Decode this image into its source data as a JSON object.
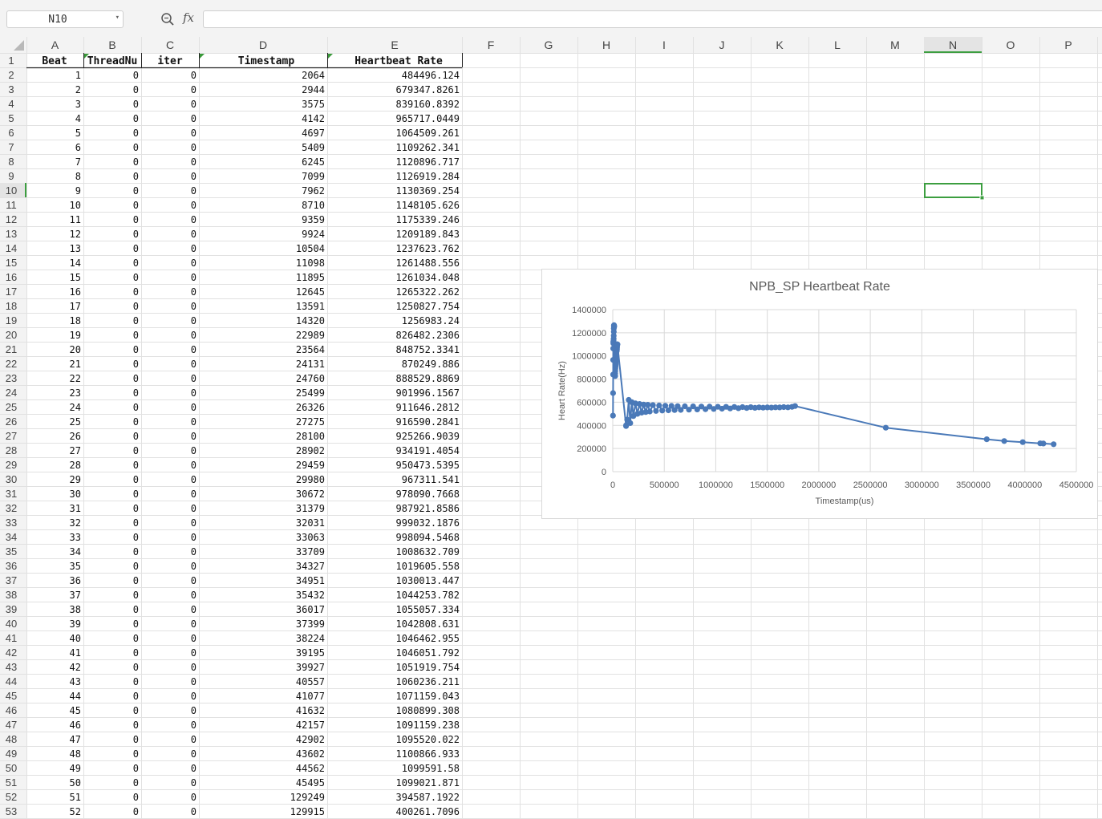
{
  "formula_bar": {
    "name_box": "N10",
    "fx_label": "fx",
    "formula_value": ""
  },
  "columns": [
    "A",
    "B",
    "C",
    "D",
    "E",
    "F",
    "G",
    "H",
    "I",
    "J",
    "K",
    "L",
    "M",
    "N",
    "O",
    "P"
  ],
  "selected_column": "N",
  "selected_row": "10",
  "selected_cell": "N10",
  "colors": {
    "selection": "#3c9e40",
    "series": "#4a79b8",
    "grid": "#e1e1e1",
    "header_bg": "#f3f3f3"
  },
  "sheet": {
    "headers": [
      "Beat",
      "ThreadNu",
      "iter",
      "Timestamp",
      "Heartbeat Rate"
    ],
    "rows": [
      [
        "1",
        "0",
        "0",
        "2064",
        "484496.124"
      ],
      [
        "2",
        "0",
        "0",
        "2944",
        "679347.8261"
      ],
      [
        "3",
        "0",
        "0",
        "3575",
        "839160.8392"
      ],
      [
        "4",
        "0",
        "0",
        "4142",
        "965717.0449"
      ],
      [
        "5",
        "0",
        "0",
        "4697",
        "1064509.261"
      ],
      [
        "6",
        "0",
        "0",
        "5409",
        "1109262.341"
      ],
      [
        "7",
        "0",
        "0",
        "6245",
        "1120896.717"
      ],
      [
        "8",
        "0",
        "0",
        "7099",
        "1126919.284"
      ],
      [
        "9",
        "0",
        "0",
        "7962",
        "1130369.254"
      ],
      [
        "10",
        "0",
        "0",
        "8710",
        "1148105.626"
      ],
      [
        "11",
        "0",
        "0",
        "9359",
        "1175339.246"
      ],
      [
        "12",
        "0",
        "0",
        "9924",
        "1209189.843"
      ],
      [
        "13",
        "0",
        "0",
        "10504",
        "1237623.762"
      ],
      [
        "14",
        "0",
        "0",
        "11098",
        "1261488.556"
      ],
      [
        "15",
        "0",
        "0",
        "11895",
        "1261034.048"
      ],
      [
        "16",
        "0",
        "0",
        "12645",
        "1265322.262"
      ],
      [
        "17",
        "0",
        "0",
        "13591",
        "1250827.754"
      ],
      [
        "18",
        "0",
        "0",
        "14320",
        "1256983.24"
      ],
      [
        "19",
        "0",
        "0",
        "22989",
        "826482.2306"
      ],
      [
        "20",
        "0",
        "0",
        "23564",
        "848752.3341"
      ],
      [
        "21",
        "0",
        "0",
        "24131",
        "870249.886"
      ],
      [
        "22",
        "0",
        "0",
        "24760",
        "888529.8869"
      ],
      [
        "23",
        "0",
        "0",
        "25499",
        "901996.1567"
      ],
      [
        "24",
        "0",
        "0",
        "26326",
        "911646.2812"
      ],
      [
        "25",
        "0",
        "0",
        "27275",
        "916590.2841"
      ],
      [
        "26",
        "0",
        "0",
        "28100",
        "925266.9039"
      ],
      [
        "27",
        "0",
        "0",
        "28902",
        "934191.4054"
      ],
      [
        "28",
        "0",
        "0",
        "29459",
        "950473.5395"
      ],
      [
        "29",
        "0",
        "0",
        "29980",
        "967311.541"
      ],
      [
        "30",
        "0",
        "0",
        "30672",
        "978090.7668"
      ],
      [
        "31",
        "0",
        "0",
        "31379",
        "987921.8586"
      ],
      [
        "32",
        "0",
        "0",
        "32031",
        "999032.1876"
      ],
      [
        "33",
        "0",
        "0",
        "33063",
        "998094.5468"
      ],
      [
        "34",
        "0",
        "0",
        "33709",
        "1008632.709"
      ],
      [
        "35",
        "0",
        "0",
        "34327",
        "1019605.558"
      ],
      [
        "36",
        "0",
        "0",
        "34951",
        "1030013.447"
      ],
      [
        "37",
        "0",
        "0",
        "35432",
        "1044253.782"
      ],
      [
        "38",
        "0",
        "0",
        "36017",
        "1055057.334"
      ],
      [
        "39",
        "0",
        "0",
        "37399",
        "1042808.631"
      ],
      [
        "40",
        "0",
        "0",
        "38224",
        "1046462.955"
      ],
      [
        "41",
        "0",
        "0",
        "39195",
        "1046051.792"
      ],
      [
        "42",
        "0",
        "0",
        "39927",
        "1051919.754"
      ],
      [
        "43",
        "0",
        "0",
        "40557",
        "1060236.211"
      ],
      [
        "44",
        "0",
        "0",
        "41077",
        "1071159.043"
      ],
      [
        "45",
        "0",
        "0",
        "41632",
        "1080899.308"
      ],
      [
        "46",
        "0",
        "0",
        "42157",
        "1091159.238"
      ],
      [
        "47",
        "0",
        "0",
        "42902",
        "1095520.022"
      ],
      [
        "48",
        "0",
        "0",
        "43602",
        "1100866.933"
      ],
      [
        "49",
        "0",
        "0",
        "44562",
        "1099591.58"
      ],
      [
        "50",
        "0",
        "0",
        "45495",
        "1099021.871"
      ],
      [
        "51",
        "0",
        "0",
        "129249",
        "394587.1922"
      ],
      [
        "52",
        "0",
        "0",
        "129915",
        "400261.7096"
      ]
    ]
  },
  "chart_data": {
    "type": "scatter",
    "title": "NPB_SP Heartbeat Rate",
    "xlabel": "Timestamp(us)",
    "ylabel": "Heart Rate(Hz)",
    "xlim": [
      0,
      4500000
    ],
    "ylim": [
      0,
      1400000
    ],
    "x_ticks": [
      "0",
      "500000",
      "1000000",
      "1500000",
      "2000000",
      "2500000",
      "3000000",
      "3500000",
      "4000000",
      "4500000"
    ],
    "y_ticks": [
      "0",
      "200000",
      "400000",
      "600000",
      "800000",
      "1000000",
      "1200000",
      "1400000"
    ],
    "grid": true,
    "markers": true,
    "line": "smooth",
    "series": [
      {
        "x": [
          2064,
          2944,
          3575,
          4142,
          4697,
          5409,
          6245,
          7099,
          7962,
          8710,
          9359,
          9924,
          10504,
          11098,
          11895,
          12645,
          13591,
          14320,
          22989,
          23564,
          24131,
          24760,
          25499,
          26326,
          27275,
          28100,
          28902,
          29459,
          29980,
          30672,
          31379,
          32031,
          33063,
          33709,
          34327,
          34951,
          35432,
          36017,
          37399,
          38224,
          39195,
          39927,
          40557,
          41077,
          41632,
          42157,
          42902,
          43602,
          44562,
          45495,
          129249,
          129915,
          140000,
          155000,
          170000,
          185000,
          200000,
          220000,
          240000,
          260000,
          280000,
          300000,
          320000,
          340000,
          360000,
          390000,
          420000,
          450000,
          480000,
          510000,
          540000,
          570000,
          600000,
          630000,
          660000,
          700000,
          740000,
          780000,
          820000,
          860000,
          900000,
          940000,
          980000,
          1020000,
          1060000,
          1100000,
          1140000,
          1180000,
          1220000,
          1260000,
          1300000,
          1340000,
          1380000,
          1420000,
          1460000,
          1500000,
          1540000,
          1580000,
          1620000,
          1660000,
          1700000,
          1740000,
          1770000,
          2650000,
          3630000,
          3800000,
          3980000,
          4150000,
          4180000,
          4280000
        ],
        "y": [
          484496,
          679348,
          839161,
          965717,
          1064509,
          1109262,
          1120897,
          1126919,
          1130369,
          1148106,
          1175339,
          1209190,
          1237624,
          1261489,
          1261034,
          1265322,
          1250828,
          1256983,
          826482,
          848752,
          870250,
          888530,
          901996,
          911646,
          916590,
          925267,
          934191,
          950474,
          967312,
          978091,
          987922,
          999032,
          998095,
          1008633,
          1019606,
          1030013,
          1044254,
          1055057,
          1042809,
          1046463,
          1046052,
          1051920,
          1060236,
          1071159,
          1080899,
          1091159,
          1095520,
          1100867,
          1099592,
          1099022,
          394587,
          400262,
          450000,
          620000,
          420000,
          600000,
          480000,
          590000,
          500000,
          585000,
          510000,
          580000,
          515000,
          578000,
          520000,
          575000,
          525000,
          572000,
          528000,
          570000,
          530000,
          568000,
          532000,
          566000,
          534000,
          565000,
          536000,
          564000,
          538000,
          563000,
          540000,
          562000,
          542000,
          561000,
          544000,
          560000,
          546000,
          559000,
          548000,
          558000,
          550000,
          557000,
          552000,
          556000,
          553000,
          555000,
          554000,
          556000,
          555000,
          558000,
          556000,
          560000,
          567000,
          380000,
          280000,
          265000,
          255000,
          245000,
          243000,
          237000
        ]
      }
    ]
  }
}
